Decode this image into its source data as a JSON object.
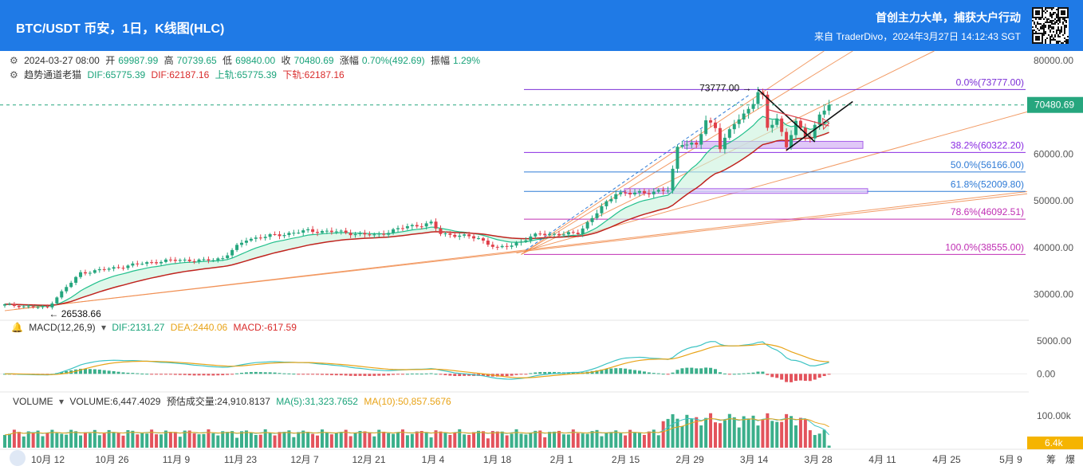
{
  "header": {
    "title": "BTC/USDT 币安，1日，K线图(HLC)",
    "slogan": "首创主力大单，捕获大户行动",
    "source": "来自 TraderDivo，2024年3月27日 14:12:43 SGT"
  },
  "ohlc_line": {
    "date": "2024-03-27 08:00",
    "open_label": "开",
    "open": "69987.99",
    "high_label": "高",
    "high": "70739.65",
    "low_label": "低",
    "low": "69840.00",
    "close_label": "收",
    "close": "70480.69",
    "change_label": "涨幅",
    "change": "0.70%(492.69)",
    "amp_label": "振幅",
    "amp": "1.29%"
  },
  "indicator_line": {
    "name": "趋势通道老猫",
    "dif": "DIF:65775.39",
    "dif2": "DIF:62187.16",
    "upper": "上轨:65775.39",
    "lower": "下轨:62187.16"
  },
  "macd_line": {
    "name": "MACD(12,26,9)",
    "dif": "DIF:2131.27",
    "dea": "DEA:2440.06",
    "macd": "MACD:-617.59"
  },
  "volume_line": {
    "name": "VOLUME",
    "volume": "VOLUME:6,447.4029",
    "est": "预估成交量:24,910.8137",
    "ma5": "MA(5):31,323.7652",
    "ma10": "MA(10):50,857.5676"
  },
  "colors": {
    "up": "#26a67e",
    "down": "#e0404a",
    "accent": "#1f7ae6",
    "fib": "#8a2be2",
    "ma_red": "#c0231e",
    "ma_teal": "#22c08c"
  },
  "chart_data": {
    "type": "candlestick",
    "price_axis": {
      "ticks": [
        "80000.00",
        "70000.00",
        "60000.00",
        "50000.00",
        "40000.00",
        "30000.00"
      ],
      "values": [
        80000,
        70000,
        60000,
        50000,
        40000,
        30000
      ],
      "ylim": [
        24500,
        82000
      ]
    },
    "last_price": {
      "label": "70480.69",
      "value": 70480.69
    },
    "macd_axis": {
      "ticks": [
        "5000.00",
        "0.00"
      ],
      "values": [
        5000,
        0
      ],
      "ylim": [
        -2500,
        6200
      ]
    },
    "volume_axis": {
      "ticks": [
        "100.00k"
      ],
      "values": [
        100000
      ],
      "last_label": "6.4k",
      "ylim": [
        0,
        125000
      ]
    },
    "x_labels": [
      "10月 12",
      "10月 26",
      "11月 9",
      "11月 23",
      "12月 7",
      "12月 21",
      "1月 4",
      "1月 18",
      "2月 1",
      "2月 15",
      "2月 29",
      "3月 14",
      "3月 28",
      "4月 11",
      "4月 25",
      "5月 9"
    ],
    "x_extra": [
      "筹",
      "爆"
    ],
    "annotations": {
      "high": {
        "label": "73777.00",
        "value": 73777
      },
      "low": {
        "label": "26538.66",
        "value": 26538.66
      }
    },
    "fib_levels": [
      {
        "label": "0.0%(73777.00)",
        "value": 73777,
        "color": "#7b2fd6"
      },
      {
        "label": "38.2%(60322.20)",
        "value": 60322.2,
        "color": "#8a2be2"
      },
      {
        "label": "50.0%(56166.00)",
        "value": 56166,
        "color": "#2f7bd6"
      },
      {
        "label": "61.8%(52009.80)",
        "value": 52009.8,
        "color": "#2f7bd6"
      },
      {
        "label": "78.6%(46092.51)",
        "value": 46092.51,
        "color": "#c02fb4"
      },
      {
        "label": "100.0%(38555.00)",
        "value": 38555,
        "color": "#c02fb4"
      }
    ],
    "anchors": [
      [
        0,
        27800
      ],
      [
        6,
        27300
      ],
      [
        9,
        27200
      ],
      [
        11,
        29500
      ],
      [
        16,
        34600
      ],
      [
        22,
        35500
      ],
      [
        30,
        36800
      ],
      [
        37,
        37400
      ],
      [
        42,
        37200
      ],
      [
        46,
        37800
      ],
      [
        51,
        41800
      ],
      [
        56,
        42500
      ],
      [
        64,
        43600
      ],
      [
        70,
        43400
      ],
      [
        78,
        42600
      ],
      [
        85,
        44500
      ],
      [
        90,
        45200
      ],
      [
        92,
        43000
      ],
      [
        96,
        42600
      ],
      [
        100,
        42000
      ],
      [
        104,
        39800
      ],
      [
        107,
        40600
      ],
      [
        113,
        43000
      ],
      [
        118,
        42800
      ],
      [
        121,
        43200
      ],
      [
        126,
        48500
      ],
      [
        129,
        51800
      ],
      [
        132,
        51500
      ],
      [
        136,
        51900
      ],
      [
        140,
        52200
      ],
      [
        141,
        56500
      ],
      [
        142,
        61500
      ],
      [
        143,
        62500
      ],
      [
        146,
        61800
      ],
      [
        148,
        67000
      ],
      [
        150,
        66000
      ],
      [
        151,
        61500
      ],
      [
        154,
        66500
      ],
      [
        156,
        68400
      ],
      [
        158,
        71300
      ],
      [
        159,
        73100
      ],
      [
        160,
        72000
      ],
      [
        161,
        65500
      ],
      [
        163,
        67500
      ],
      [
        165,
        61900
      ],
      [
        167,
        66500
      ],
      [
        169,
        64000
      ],
      [
        170,
        63500
      ],
      [
        172,
        68700
      ],
      [
        174,
        70500
      ]
    ]
  }
}
